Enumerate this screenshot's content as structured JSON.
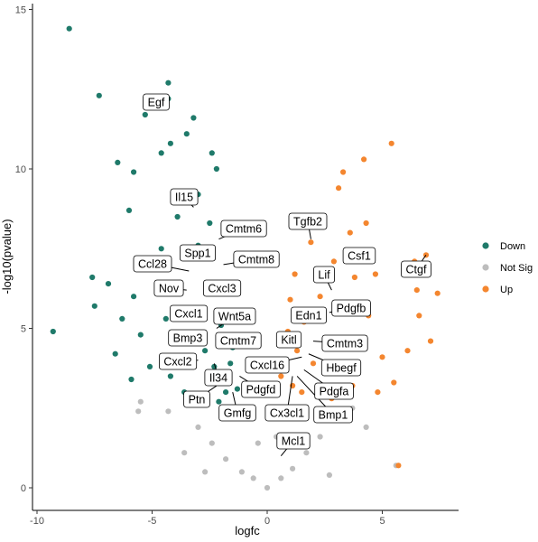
{
  "chart_data": {
    "type": "scatter",
    "title": "",
    "xlabel": "logfc",
    "ylabel": "-log10(pvalue)",
    "xlim": [
      -10.2,
      8.2
    ],
    "ylim": [
      -0.8,
      15.2
    ],
    "x_ticks": [
      -10,
      -5,
      0,
      5
    ],
    "y_ticks": [
      0,
      5,
      10,
      15
    ],
    "grid": false,
    "legend": {
      "placement": "right",
      "entries": [
        {
          "name": "Down",
          "color": "#1f7a6a"
        },
        {
          "name": "Not Sig",
          "color": "#bdbdbd"
        },
        {
          "name": "Up",
          "color": "#f4862f"
        }
      ]
    },
    "series": [
      {
        "name": "Down",
        "color": "#1f7a6a",
        "points": [
          [
            -8.6,
            14.4
          ],
          [
            -7.3,
            12.3
          ],
          [
            -5.2,
            12.0
          ],
          [
            -4.3,
            12.7
          ],
          [
            -5.3,
            11.7
          ],
          [
            -4.3,
            12.2
          ],
          [
            -3.2,
            11.6
          ],
          [
            -4.2,
            10.8
          ],
          [
            -4.6,
            10.5
          ],
          [
            -6.5,
            10.2
          ],
          [
            -5.8,
            9.9
          ],
          [
            -3.0,
            9.2
          ],
          [
            -2.4,
            10.5
          ],
          [
            -6.0,
            8.7
          ],
          [
            -7.6,
            6.6
          ],
          [
            -6.9,
            6.4
          ],
          [
            -9.3,
            4.9
          ],
          [
            -7.5,
            5.7
          ],
          [
            -6.3,
            5.3
          ],
          [
            -5.5,
            4.8
          ],
          [
            -3.5,
            11.1
          ],
          [
            -2.2,
            10.0
          ],
          [
            -2.5,
            8.3
          ],
          [
            -4.6,
            7.5
          ],
          [
            -5.8,
            6.0
          ],
          [
            -4.4,
            5.3
          ],
          [
            -3.3,
            4.7
          ],
          [
            -2.7,
            4.3
          ],
          [
            -2.3,
            3.8
          ],
          [
            -1.9,
            3.4
          ],
          [
            -1.6,
            3.9
          ],
          [
            -1.3,
            3.1
          ],
          [
            -5.1,
            3.8
          ],
          [
            -4.2,
            3.5
          ],
          [
            -3.6,
            3.0
          ],
          [
            -2.8,
            2.9
          ],
          [
            -2.1,
            2.7
          ],
          [
            -1.8,
            3.0
          ],
          [
            -3.9,
            8.5
          ],
          [
            -3.0,
            7.6
          ],
          [
            -2.6,
            6.2
          ],
          [
            -2.0,
            5.1
          ],
          [
            -1.5,
            4.4
          ],
          [
            -6.6,
            4.2
          ],
          [
            -5.9,
            3.4
          ]
        ]
      },
      {
        "name": "Up",
        "color": "#f4862f",
        "points": [
          [
            5.4,
            10.8
          ],
          [
            4.2,
            10.3
          ],
          [
            3.3,
            9.9
          ],
          [
            3.1,
            9.4
          ],
          [
            6.4,
            7.1
          ],
          [
            6.9,
            7.3
          ],
          [
            6.5,
            6.2
          ],
          [
            7.4,
            6.1
          ],
          [
            6.6,
            5.4
          ],
          [
            7.1,
            4.6
          ],
          [
            6.1,
            4.3
          ],
          [
            5.7,
            0.7
          ],
          [
            4.7,
            6.7
          ],
          [
            4.3,
            8.3
          ],
          [
            3.6,
            8.0
          ],
          [
            2.2,
            8.3
          ],
          [
            1.9,
            7.7
          ],
          [
            1.2,
            6.7
          ],
          [
            1.0,
            5.9
          ],
          [
            0.9,
            4.9
          ],
          [
            0.8,
            3.8
          ],
          [
            1.1,
            3.2
          ],
          [
            1.5,
            3.0
          ],
          [
            2.0,
            3.9
          ],
          [
            2.6,
            4.7
          ],
          [
            3.2,
            5.6
          ],
          [
            3.8,
            6.6
          ],
          [
            4.4,
            5.4
          ],
          [
            5.0,
            4.1
          ],
          [
            5.5,
            3.3
          ],
          [
            4.8,
            3.0
          ],
          [
            3.7,
            3.2
          ],
          [
            2.8,
            2.8
          ],
          [
            1.6,
            5.2
          ],
          [
            2.3,
            6.0
          ],
          [
            2.9,
            7.1
          ],
          [
            1.3,
            4.3
          ],
          [
            0.6,
            3.5
          ],
          [
            4.0,
            4.5
          ],
          [
            3.5,
            3.7
          ]
        ]
      },
      {
        "name": "Not Sig",
        "color": "#bdbdbd",
        "points": [
          [
            -5.5,
            2.7
          ],
          [
            -5.6,
            2.4
          ],
          [
            -4.3,
            2.4
          ],
          [
            -3.6,
            1.1
          ],
          [
            -3.0,
            1.9
          ],
          [
            -2.4,
            1.4
          ],
          [
            -1.8,
            0.9
          ],
          [
            -1.1,
            0.5
          ],
          [
            -0.6,
            0.3
          ],
          [
            0.0,
            0.0
          ],
          [
            0.6,
            0.3
          ],
          [
            1.1,
            0.6
          ],
          [
            1.7,
            1.1
          ],
          [
            2.3,
            1.6
          ],
          [
            3.0,
            2.2
          ],
          [
            3.7,
            2.5
          ],
          [
            4.3,
            1.9
          ],
          [
            5.6,
            0.7
          ],
          [
            2.7,
            0.4
          ],
          [
            -2.7,
            0.5
          ],
          [
            -1.4,
            2.2
          ],
          [
            1.4,
            2.4
          ],
          [
            0.4,
            1.6
          ],
          [
            -0.4,
            1.4
          ]
        ]
      }
    ],
    "labels": [
      {
        "text": "Egf",
        "x": -4.3,
        "y": 12.0
      },
      {
        "text": "Il15",
        "x": -3.2,
        "y": 8.8
      },
      {
        "text": "Cmtm6",
        "x": -2.1,
        "y": 7.8
      },
      {
        "text": "Spp1",
        "x": -2.6,
        "y": 7.3
      },
      {
        "text": "Cmtm8",
        "x": -1.9,
        "y": 7.0
      },
      {
        "text": "Ccl28",
        "x": -3.4,
        "y": 6.8
      },
      {
        "text": "Nov",
        "x": -3.5,
        "y": 6.2
      },
      {
        "text": "Cxcl3",
        "x": -2.3,
        "y": 6.3
      },
      {
        "text": "Cxcl1",
        "x": -3.2,
        "y": 5.3
      },
      {
        "text": "Wnt5a",
        "x": -2.2,
        "y": 5.0
      },
      {
        "text": "Bmp3",
        "x": -3.4,
        "y": 4.7
      },
      {
        "text": "Cmtm7",
        "x": -1.3,
        "y": 4.4
      },
      {
        "text": "Cxcl2",
        "x": -3.0,
        "y": 4.0
      },
      {
        "text": "Il34",
        "x": -2.3,
        "y": 3.9
      },
      {
        "text": "Pdgfd",
        "x": -1.2,
        "y": 3.5
      },
      {
        "text": "Ptn",
        "x": -2.2,
        "y": 3.2
      },
      {
        "text": "Gmfg",
        "x": -1.5,
        "y": 3.0
      },
      {
        "text": "Tgfb2",
        "x": 1.9,
        "y": 7.8
      },
      {
        "text": "Csf1",
        "x": 3.7,
        "y": 7.4
      },
      {
        "text": "Ctgf",
        "x": 6.9,
        "y": 7.3
      },
      {
        "text": "Lif",
        "x": 2.8,
        "y": 6.2
      },
      {
        "text": "Pdgfb",
        "x": 2.7,
        "y": 5.5
      },
      {
        "text": "Edn1",
        "x": 1.8,
        "y": 5.3
      },
      {
        "text": "Kitl",
        "x": 1.2,
        "y": 4.8
      },
      {
        "text": "Cmtm3",
        "x": 2.0,
        "y": 4.6
      },
      {
        "text": "Cxcl16",
        "x": 1.5,
        "y": 4.1
      },
      {
        "text": "Hbegf",
        "x": 1.8,
        "y": 4.2
      },
      {
        "text": "Pdgfa",
        "x": 1.6,
        "y": 3.7
      },
      {
        "text": "Cx3cl1",
        "x": 1.1,
        "y": 3.5
      },
      {
        "text": "Bmp1",
        "x": 1.3,
        "y": 3.5
      },
      {
        "text": "Mcl1",
        "x": 0.6,
        "y": 1.0
      }
    ]
  }
}
